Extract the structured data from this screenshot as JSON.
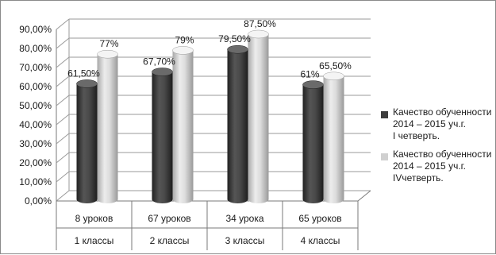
{
  "chart_data": {
    "type": "bar",
    "y_ticks": [
      "0,00%",
      "10,00%",
      "20,00%",
      "30,00%",
      "40,00%",
      "50,00%",
      "60,00%",
      "70,00%",
      "80,00%",
      "90,00%"
    ],
    "ylim": [
      0,
      90
    ],
    "grid": true,
    "legend_position": "right",
    "categories": [
      {
        "row1": "8 уроков",
        "row2": "1 классы"
      },
      {
        "row1": "67 уроков",
        "row2": "2 классы"
      },
      {
        "row1": "34 урока",
        "row2": "3 классы"
      },
      {
        "row1": "65 уроков",
        "row2": "4 классы"
      }
    ],
    "series": [
      {
        "name": "Качество обученности 2014 – 2015 уч.г. I четверть.",
        "name_lines": [
          "Качество обученности",
          "2014 – 2015 уч.г.",
          "I четверть."
        ],
        "color": "#3d3d3d",
        "values": [
          61.5,
          67.7,
          79.5,
          61
        ],
        "labels": [
          "61,50%",
          "67,70%",
          "79,50%",
          "61%"
        ]
      },
      {
        "name": "Качество обученности 2014 – 2015 уч.г. IV четверть.",
        "name_lines": [
          "Качество обученности",
          "2014 – 2015 уч.г.",
          "IVчетверть."
        ],
        "color": "#d0d0d0",
        "values": [
          77,
          79,
          87.5,
          65.5
        ],
        "labels": [
          "77%",
          "79%",
          "87,50%",
          "65,50%"
        ]
      }
    ]
  }
}
